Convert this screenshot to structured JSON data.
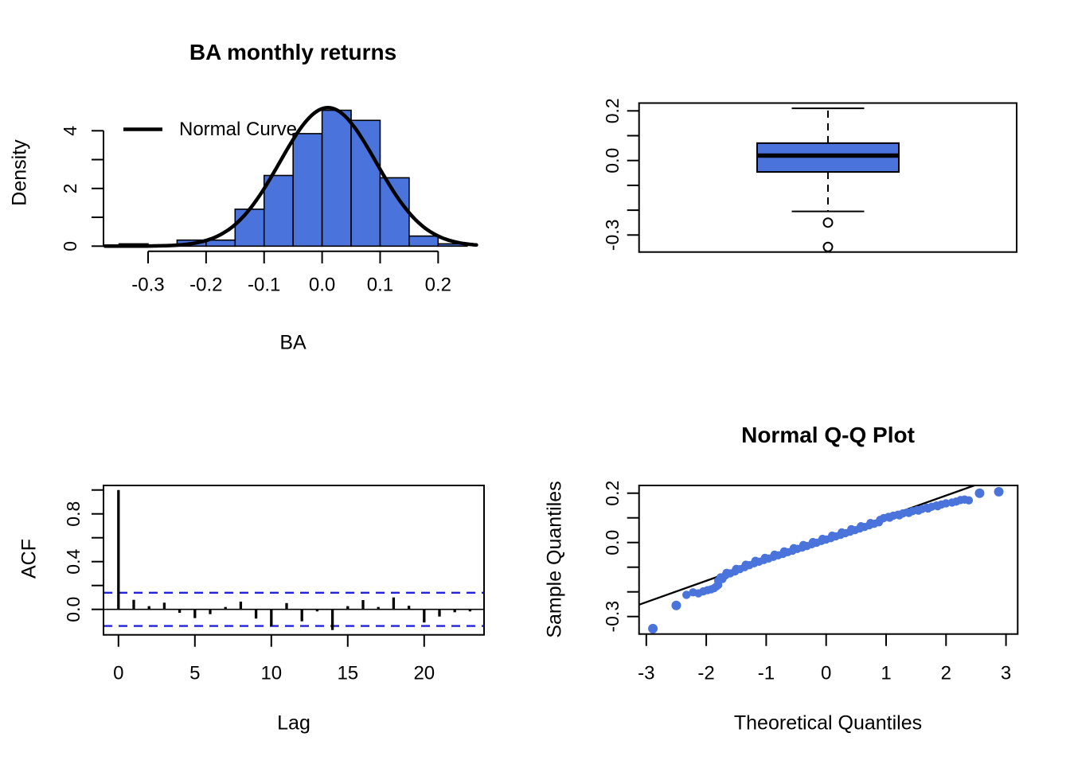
{
  "figure": {
    "background": "#ffffff"
  },
  "colors": {
    "fill_blue": "#4a74dc",
    "ci_blue": "#2222dd",
    "axis_black": "#000000",
    "background": "#ffffff"
  },
  "chart_data": [
    {
      "id": "histogram",
      "type": "bar",
      "title": "BA monthly returns",
      "xlabel": "BA",
      "ylabel": "Density",
      "legend": {
        "label": "Normal Curve"
      },
      "bins": {
        "start": -0.35,
        "width": 0.05,
        "densities": [
          0.08,
          0,
          0.21,
          0.21,
          1.28,
          2.45,
          3.9,
          4.71,
          4.36,
          2.37,
          0.35,
          0.08
        ]
      },
      "normal_curve": {
        "mean": 0.01,
        "sd": 0.083,
        "peak": 4.8,
        "x_range": [
          -0.374,
          0.268
        ]
      },
      "x_ticks": [
        {
          "v": -0.3,
          "l": "-0.3"
        },
        {
          "v": -0.2,
          "l": "-0.2"
        },
        {
          "v": -0.1,
          "l": "-0.1"
        },
        {
          "v": 0.0,
          "l": "0.0"
        },
        {
          "v": 0.1,
          "l": "0.1"
        },
        {
          "v": 0.2,
          "l": "0.2"
        }
      ],
      "y_ticks": [
        {
          "v": 0,
          "l": "0"
        },
        {
          "v": 1
        },
        {
          "v": 2,
          "l": "2"
        },
        {
          "v": 3
        },
        {
          "v": 4,
          "l": "4"
        }
      ],
      "xlim": [
        -0.375,
        0.27
      ],
      "ylim": [
        0,
        4.8
      ],
      "grid": false
    },
    {
      "id": "boxplot",
      "type": "boxplot",
      "orientation": "vertical",
      "stats": {
        "lower_whisker": -0.205,
        "q1": -0.046,
        "median": 0.02,
        "q3": 0.07,
        "upper_whisker": 0.21,
        "outliers": [
          -0.25,
          -0.348
        ]
      },
      "y_ticks": [
        {
          "v": 0.2,
          "l": "0.2"
        },
        {
          "v": 0.1
        },
        {
          "v": 0.0,
          "l": "0.0"
        },
        {
          "v": -0.1
        },
        {
          "v": -0.2
        },
        {
          "v": -0.3,
          "l": "-0.3"
        }
      ],
      "ylim": [
        -0.373,
        0.232
      ],
      "grid": false
    },
    {
      "id": "acf",
      "type": "bar",
      "xlabel": "Lag",
      "ylabel": "ACF",
      "lags": [
        0,
        1,
        2,
        3,
        4,
        5,
        6,
        7,
        8,
        9,
        10,
        11,
        12,
        13,
        14,
        15,
        16,
        17,
        18,
        19,
        20,
        21,
        22,
        23
      ],
      "values": [
        1.0,
        0.08,
        0.027,
        0.056,
        -0.029,
        -0.073,
        -0.04,
        0.02,
        0.065,
        -0.077,
        -0.14,
        0.053,
        -0.1,
        -0.017,
        -0.173,
        0.027,
        0.078,
        0.02,
        0.1,
        0.03,
        -0.11,
        -0.06,
        -0.024,
        -0.017
      ],
      "confidence_band": 0.139,
      "x_ticks": [
        {
          "v": 0,
          "l": "0"
        },
        {
          "v": 5,
          "l": "5"
        },
        {
          "v": 10,
          "l": "10"
        },
        {
          "v": 15,
          "l": "15"
        },
        {
          "v": 20,
          "l": "20"
        }
      ],
      "y_ticks": [
        {
          "v": 0.0,
          "l": "0.0"
        },
        {
          "v": 0.2
        },
        {
          "v": 0.4,
          "l": "0.4"
        },
        {
          "v": 0.6
        },
        {
          "v": 0.8,
          "l": "0.8"
        },
        {
          "v": 1.0
        }
      ],
      "xlim": [
        -1,
        24
      ],
      "ylim": [
        -0.215,
        1.04
      ],
      "grid": false
    },
    {
      "id": "qqplot",
      "type": "scatter",
      "title": "Normal Q-Q Plot",
      "xlabel": "Theoretical Quantiles",
      "ylabel": "Sample Quantiles",
      "reference_line": {
        "x1": -3.12,
        "y1": -0.252,
        "x2": 2.472,
        "y2": 0.2313
      },
      "x_ticks": [
        {
          "v": -3,
          "l": "-3"
        },
        {
          "v": -2,
          "l": "-2"
        },
        {
          "v": -1,
          "l": "-1"
        },
        {
          "v": 0,
          "l": "0"
        },
        {
          "v": 1,
          "l": "1"
        },
        {
          "v": 2,
          "l": "2"
        },
        {
          "v": 3,
          "l": "3"
        }
      ],
      "y_ticks": [
        {
          "v": 0.2,
          "l": "0.2"
        },
        {
          "v": 0.1
        },
        {
          "v": 0.0,
          "l": "0.0"
        },
        {
          "v": -0.1
        },
        {
          "v": -0.2
        },
        {
          "v": -0.3,
          "l": "-0.3"
        }
      ],
      "xlim": [
        -3.12,
        3.2
      ],
      "ylim": [
        -0.375,
        0.231
      ],
      "grid": false,
      "points": [
        [
          -2.89,
          -0.349
        ],
        [
          -2.5,
          -0.255
        ],
        [
          -2.33,
          -0.212
        ],
        [
          -2.22,
          -0.202
        ],
        [
          -2.13,
          -0.206
        ],
        [
          -2.05,
          -0.198
        ],
        [
          -1.98,
          -0.193
        ],
        [
          -1.92,
          -0.19
        ],
        [
          -1.87,
          -0.185
        ],
        [
          -1.83,
          -0.178
        ],
        [
          -1.8,
          -0.172
        ],
        [
          -1.76,
          -0.141
        ],
        [
          -1.68,
          -0.133
        ],
        [
          -1.6,
          -0.125
        ],
        [
          -1.52,
          -0.117
        ],
        [
          -1.44,
          -0.108
        ],
        [
          -1.36,
          -0.1
        ],
        [
          -1.28,
          -0.092
        ],
        [
          -1.2,
          -0.084
        ],
        [
          -1.12,
          -0.078
        ],
        [
          -1.04,
          -0.071
        ],
        [
          -0.96,
          -0.065
        ],
        [
          -0.88,
          -0.058
        ],
        [
          -0.8,
          -0.052
        ],
        [
          -0.72,
          -0.046
        ],
        [
          -0.64,
          -0.039
        ],
        [
          -0.56,
          -0.033
        ],
        [
          -0.48,
          -0.026
        ],
        [
          -0.4,
          -0.02
        ],
        [
          -0.32,
          -0.014
        ],
        [
          -0.24,
          -0.007
        ],
        [
          -0.16,
          -0.001
        ],
        [
          -0.08,
          0.006
        ],
        [
          0.0,
          0.012
        ],
        [
          0.08,
          0.018
        ],
        [
          0.16,
          0.025
        ],
        [
          0.24,
          0.031
        ],
        [
          0.32,
          0.038
        ],
        [
          0.4,
          0.044
        ],
        [
          0.48,
          0.05
        ],
        [
          0.56,
          0.057
        ],
        [
          0.64,
          0.063
        ],
        [
          0.72,
          0.07
        ],
        [
          0.8,
          0.076
        ],
        [
          0.88,
          0.082
        ],
        [
          0.96,
          0.099
        ],
        [
          1.04,
          0.104
        ],
        [
          1.12,
          0.109
        ],
        [
          1.2,
          0.113
        ],
        [
          1.28,
          0.118
        ],
        [
          1.36,
          0.122
        ],
        [
          1.44,
          0.127
        ],
        [
          1.52,
          0.132
        ],
        [
          1.6,
          0.136
        ],
        [
          1.68,
          0.141
        ],
        [
          1.76,
          0.145
        ],
        [
          1.84,
          0.15
        ],
        [
          1.92,
          0.154
        ],
        [
          2.0,
          0.159
        ],
        [
          2.1,
          0.162
        ],
        [
          2.17,
          0.166
        ],
        [
          2.24,
          0.172
        ],
        [
          2.31,
          0.174
        ],
        [
          2.38,
          0.171
        ],
        [
          2.56,
          0.2
        ],
        [
          2.88,
          0.206
        ],
        [
          -1.8,
          -0.155
        ],
        [
          -1.73,
          -0.148
        ],
        [
          -1.66,
          -0.123
        ],
        [
          -1.5,
          -0.107
        ],
        [
          -1.34,
          -0.09
        ],
        [
          -1.18,
          -0.074
        ],
        [
          -1.02,
          -0.062
        ],
        [
          -0.86,
          -0.049
        ],
        [
          -0.7,
          -0.036
        ],
        [
          -0.54,
          -0.023
        ],
        [
          -0.38,
          -0.01
        ],
        [
          -0.22,
          0.002
        ],
        [
          -0.06,
          0.015
        ],
        [
          0.1,
          0.028
        ],
        [
          0.26,
          0.041
        ],
        [
          0.42,
          0.054
        ],
        [
          0.58,
          0.066
        ],
        [
          0.74,
          0.079
        ],
        [
          0.9,
          0.092
        ],
        [
          1.06,
          0.101
        ],
        [
          1.22,
          0.11
        ],
        [
          1.38,
          0.12
        ],
        [
          1.54,
          0.129
        ],
        [
          1.7,
          0.138
        ],
        [
          1.86,
          0.147
        ]
      ]
    }
  ]
}
